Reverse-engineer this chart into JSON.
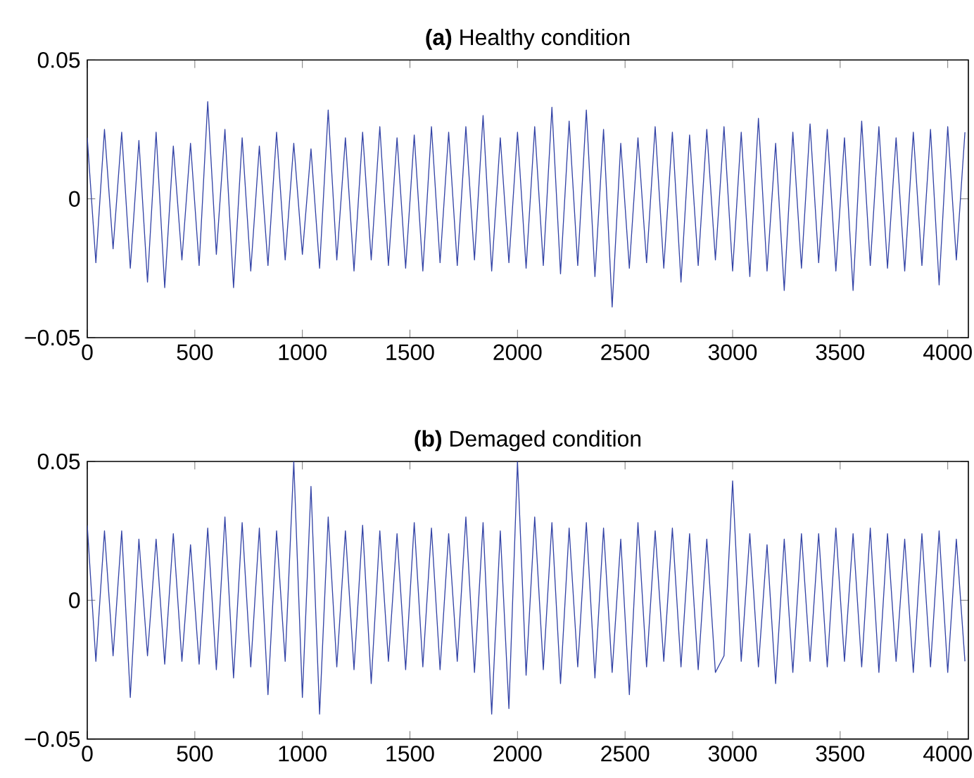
{
  "chart_data": [
    {
      "type": "line",
      "title": "**(a)** Healthy condition",
      "color": "#3343a6",
      "x": [
        0,
        40,
        80,
        120,
        160,
        200,
        240,
        280,
        320,
        360,
        400,
        440,
        480,
        520,
        560,
        600,
        640,
        680,
        720,
        760,
        800,
        840,
        880,
        920,
        960,
        1000,
        1040,
        1080,
        1120,
        1160,
        1200,
        1240,
        1280,
        1320,
        1360,
        1400,
        1440,
        1480,
        1520,
        1560,
        1600,
        1640,
        1680,
        1720,
        1760,
        1800,
        1840,
        1880,
        1920,
        1960,
        2000,
        2040,
        2080,
        2120,
        2160,
        2200,
        2240,
        2280,
        2320,
        2360,
        2400,
        2440,
        2480,
        2520,
        2560,
        2600,
        2640,
        2680,
        2720,
        2760,
        2800,
        2840,
        2880,
        2920,
        2960,
        3000,
        3040,
        3080,
        3120,
        3160,
        3200,
        3240,
        3280,
        3320,
        3360,
        3400,
        3440,
        3480,
        3520,
        3560,
        3600,
        3640,
        3680,
        3720,
        3760,
        3800,
        3840,
        3880,
        3920,
        3960,
        4000,
        4040,
        4080
      ],
      "values": [
        0.022,
        -0.023,
        0.025,
        -0.018,
        0.024,
        -0.025,
        0.021,
        -0.03,
        0.024,
        -0.032,
        0.019,
        -0.022,
        0.02,
        -0.024,
        0.035,
        -0.02,
        0.025,
        -0.032,
        0.022,
        -0.026,
        0.019,
        -0.024,
        0.024,
        -0.022,
        0.02,
        -0.02,
        0.018,
        -0.025,
        0.032,
        -0.022,
        0.022,
        -0.026,
        0.024,
        -0.022,
        0.026,
        -0.024,
        0.022,
        -0.025,
        0.023,
        -0.026,
        0.026,
        -0.023,
        0.024,
        -0.024,
        0.026,
        -0.022,
        0.03,
        -0.026,
        0.022,
        -0.023,
        0.024,
        -0.025,
        0.026,
        -0.024,
        0.033,
        -0.027,
        0.028,
        -0.024,
        0.032,
        -0.028,
        0.025,
        -0.039,
        0.02,
        -0.025,
        0.022,
        -0.023,
        0.026,
        -0.025,
        0.024,
        -0.03,
        0.023,
        -0.024,
        0.025,
        -0.022,
        0.026,
        -0.026,
        0.024,
        -0.028,
        0.029,
        -0.026,
        0.02,
        -0.033,
        0.024,
        -0.025,
        0.027,
        -0.023,
        0.025,
        -0.026,
        0.022,
        -0.033,
        0.028,
        -0.024,
        0.026,
        -0.025,
        0.022,
        -0.026,
        0.024,
        -0.024,
        0.025,
        -0.031,
        0.026,
        -0.022,
        0.024
      ],
      "xlim": [
        0,
        4096
      ],
      "xticks": [
        0,
        500,
        1000,
        1500,
        2000,
        2500,
        3000,
        3500,
        4000
      ],
      "ylim": [
        -0.05,
        0.05
      ],
      "yticks": [
        {
          "value": -0.05,
          "label": "−0.05"
        },
        0,
        0.05
      ]
    },
    {
      "type": "line",
      "title": "**(b)** Demaged condition",
      "color": "#3343a6",
      "x": [
        0,
        40,
        80,
        120,
        160,
        200,
        240,
        280,
        320,
        360,
        400,
        440,
        480,
        520,
        560,
        600,
        640,
        680,
        720,
        760,
        800,
        840,
        880,
        920,
        960,
        1000,
        1040,
        1080,
        1120,
        1160,
        1200,
        1240,
        1280,
        1320,
        1360,
        1400,
        1440,
        1480,
        1520,
        1560,
        1600,
        1640,
        1680,
        1720,
        1760,
        1800,
        1840,
        1880,
        1920,
        1960,
        2000,
        2040,
        2080,
        2120,
        2160,
        2200,
        2240,
        2280,
        2320,
        2360,
        2400,
        2440,
        2480,
        2520,
        2560,
        2600,
        2640,
        2680,
        2720,
        2760,
        2800,
        2840,
        2880,
        2920,
        2960,
        3000,
        3040,
        3080,
        3120,
        3160,
        3200,
        3240,
        3280,
        3320,
        3360,
        3400,
        3440,
        3480,
        3520,
        3560,
        3600,
        3640,
        3680,
        3720,
        3760,
        3800,
        3840,
        3880,
        3920,
        3960,
        4000,
        4040,
        4080
      ],
      "values": [
        0.027,
        -0.022,
        0.025,
        -0.02,
        0.025,
        -0.035,
        0.022,
        -0.02,
        0.022,
        -0.023,
        0.024,
        -0.022,
        0.02,
        -0.023,
        0.026,
        -0.025,
        0.03,
        -0.028,
        0.028,
        -0.024,
        0.026,
        -0.034,
        0.025,
        -0.022,
        0.05,
        -0.035,
        0.041,
        -0.041,
        0.03,
        -0.024,
        0.025,
        -0.025,
        0.027,
        -0.03,
        0.025,
        -0.022,
        0.024,
        -0.025,
        0.028,
        -0.024,
        0.026,
        -0.025,
        0.024,
        -0.022,
        0.03,
        -0.026,
        0.028,
        -0.041,
        0.025,
        -0.039,
        0.05,
        -0.027,
        0.03,
        -0.025,
        0.028,
        -0.03,
        0.026,
        -0.024,
        0.028,
        -0.028,
        0.026,
        -0.026,
        0.022,
        -0.034,
        0.028,
        -0.024,
        0.025,
        -0.022,
        0.026,
        -0.024,
        0.024,
        -0.025,
        0.022,
        -0.026,
        -0.02,
        0.043,
        -0.022,
        0.024,
        -0.024,
        0.02,
        -0.03,
        0.022,
        -0.026,
        0.024,
        -0.022,
        0.024,
        -0.024,
        0.026,
        -0.022,
        0.024,
        -0.024,
        0.026,
        -0.026,
        0.024,
        -0.022,
        0.022,
        -0.026,
        0.024,
        -0.024,
        0.025,
        -0.026,
        0.022,
        -0.022
      ],
      "xlim": [
        0,
        4096
      ],
      "xticks": [
        0,
        500,
        1000,
        1500,
        2000,
        2500,
        3000,
        3500,
        4000
      ],
      "ylim": [
        -0.05,
        0.05
      ],
      "yticks": [
        {
          "value": -0.05,
          "label": "−0.05"
        },
        0,
        0.05
      ]
    }
  ]
}
